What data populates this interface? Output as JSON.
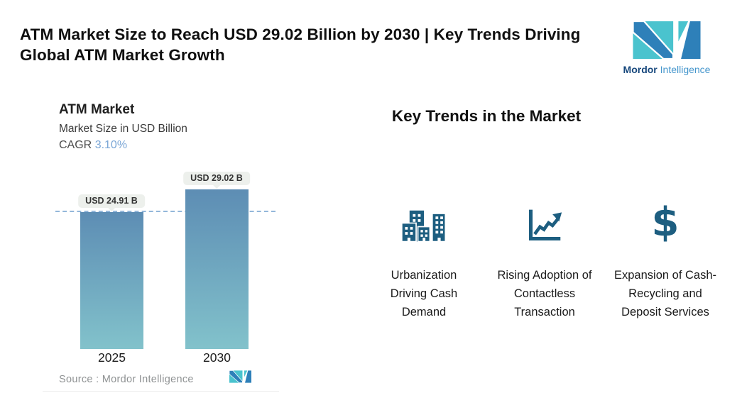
{
  "header": {
    "title": "ATM Market Size to Reach USD 29.02 Billion by 2030 | Key Trends Driving Global ATM Market Growth",
    "brand": {
      "bold": "Mordor",
      "light": "Intelligence"
    }
  },
  "chart_panel": {
    "title": "ATM Market",
    "subtitle": "Market Size in USD Billion",
    "cagr_label": "CAGR",
    "cagr_value": "3.10%",
    "source_label": "Source :  Mordor Intelligence"
  },
  "chart_data": {
    "type": "bar",
    "title": "ATM Market",
    "subtitle": "Market Size in USD Billion",
    "unit": "USD Billion",
    "categories": [
      "2025",
      "2030"
    ],
    "values": [
      24.91,
      29.02
    ],
    "bar_labels": [
      "USD 24.91 B",
      "USD 29.02 B"
    ],
    "cagr_percent": 3.1,
    "ylim": [
      0,
      29.02
    ],
    "reference_line": {
      "at_value": 24.91,
      "style": "dashed",
      "color": "#93b7da"
    },
    "bar_gradient": [
      "#5d8db4",
      "#82c2cb"
    ],
    "grid": false,
    "legend": "none",
    "source": "Mordor Intelligence"
  },
  "trends": {
    "heading": "Key Trends in the Market",
    "items": [
      {
        "icon": "buildings-icon",
        "label": "Urbanization Driving Cash Demand"
      },
      {
        "icon": "line-chart-up-icon",
        "label": "Rising Adoption of Contactless Transaction"
      },
      {
        "icon": "dollar-icon",
        "label": "Expansion of Cash-Recycling and Deposit Services"
      }
    ],
    "dollar_glyph": "$"
  },
  "colors": {
    "brand_teal": "#4ac3ce",
    "brand_blue": "#2e80b9",
    "brand_navy": "#16477c",
    "icon_dark_teal": "#1d5e80",
    "cagr_blue": "#7aa6d6",
    "dashed_line": "#93b7da"
  }
}
